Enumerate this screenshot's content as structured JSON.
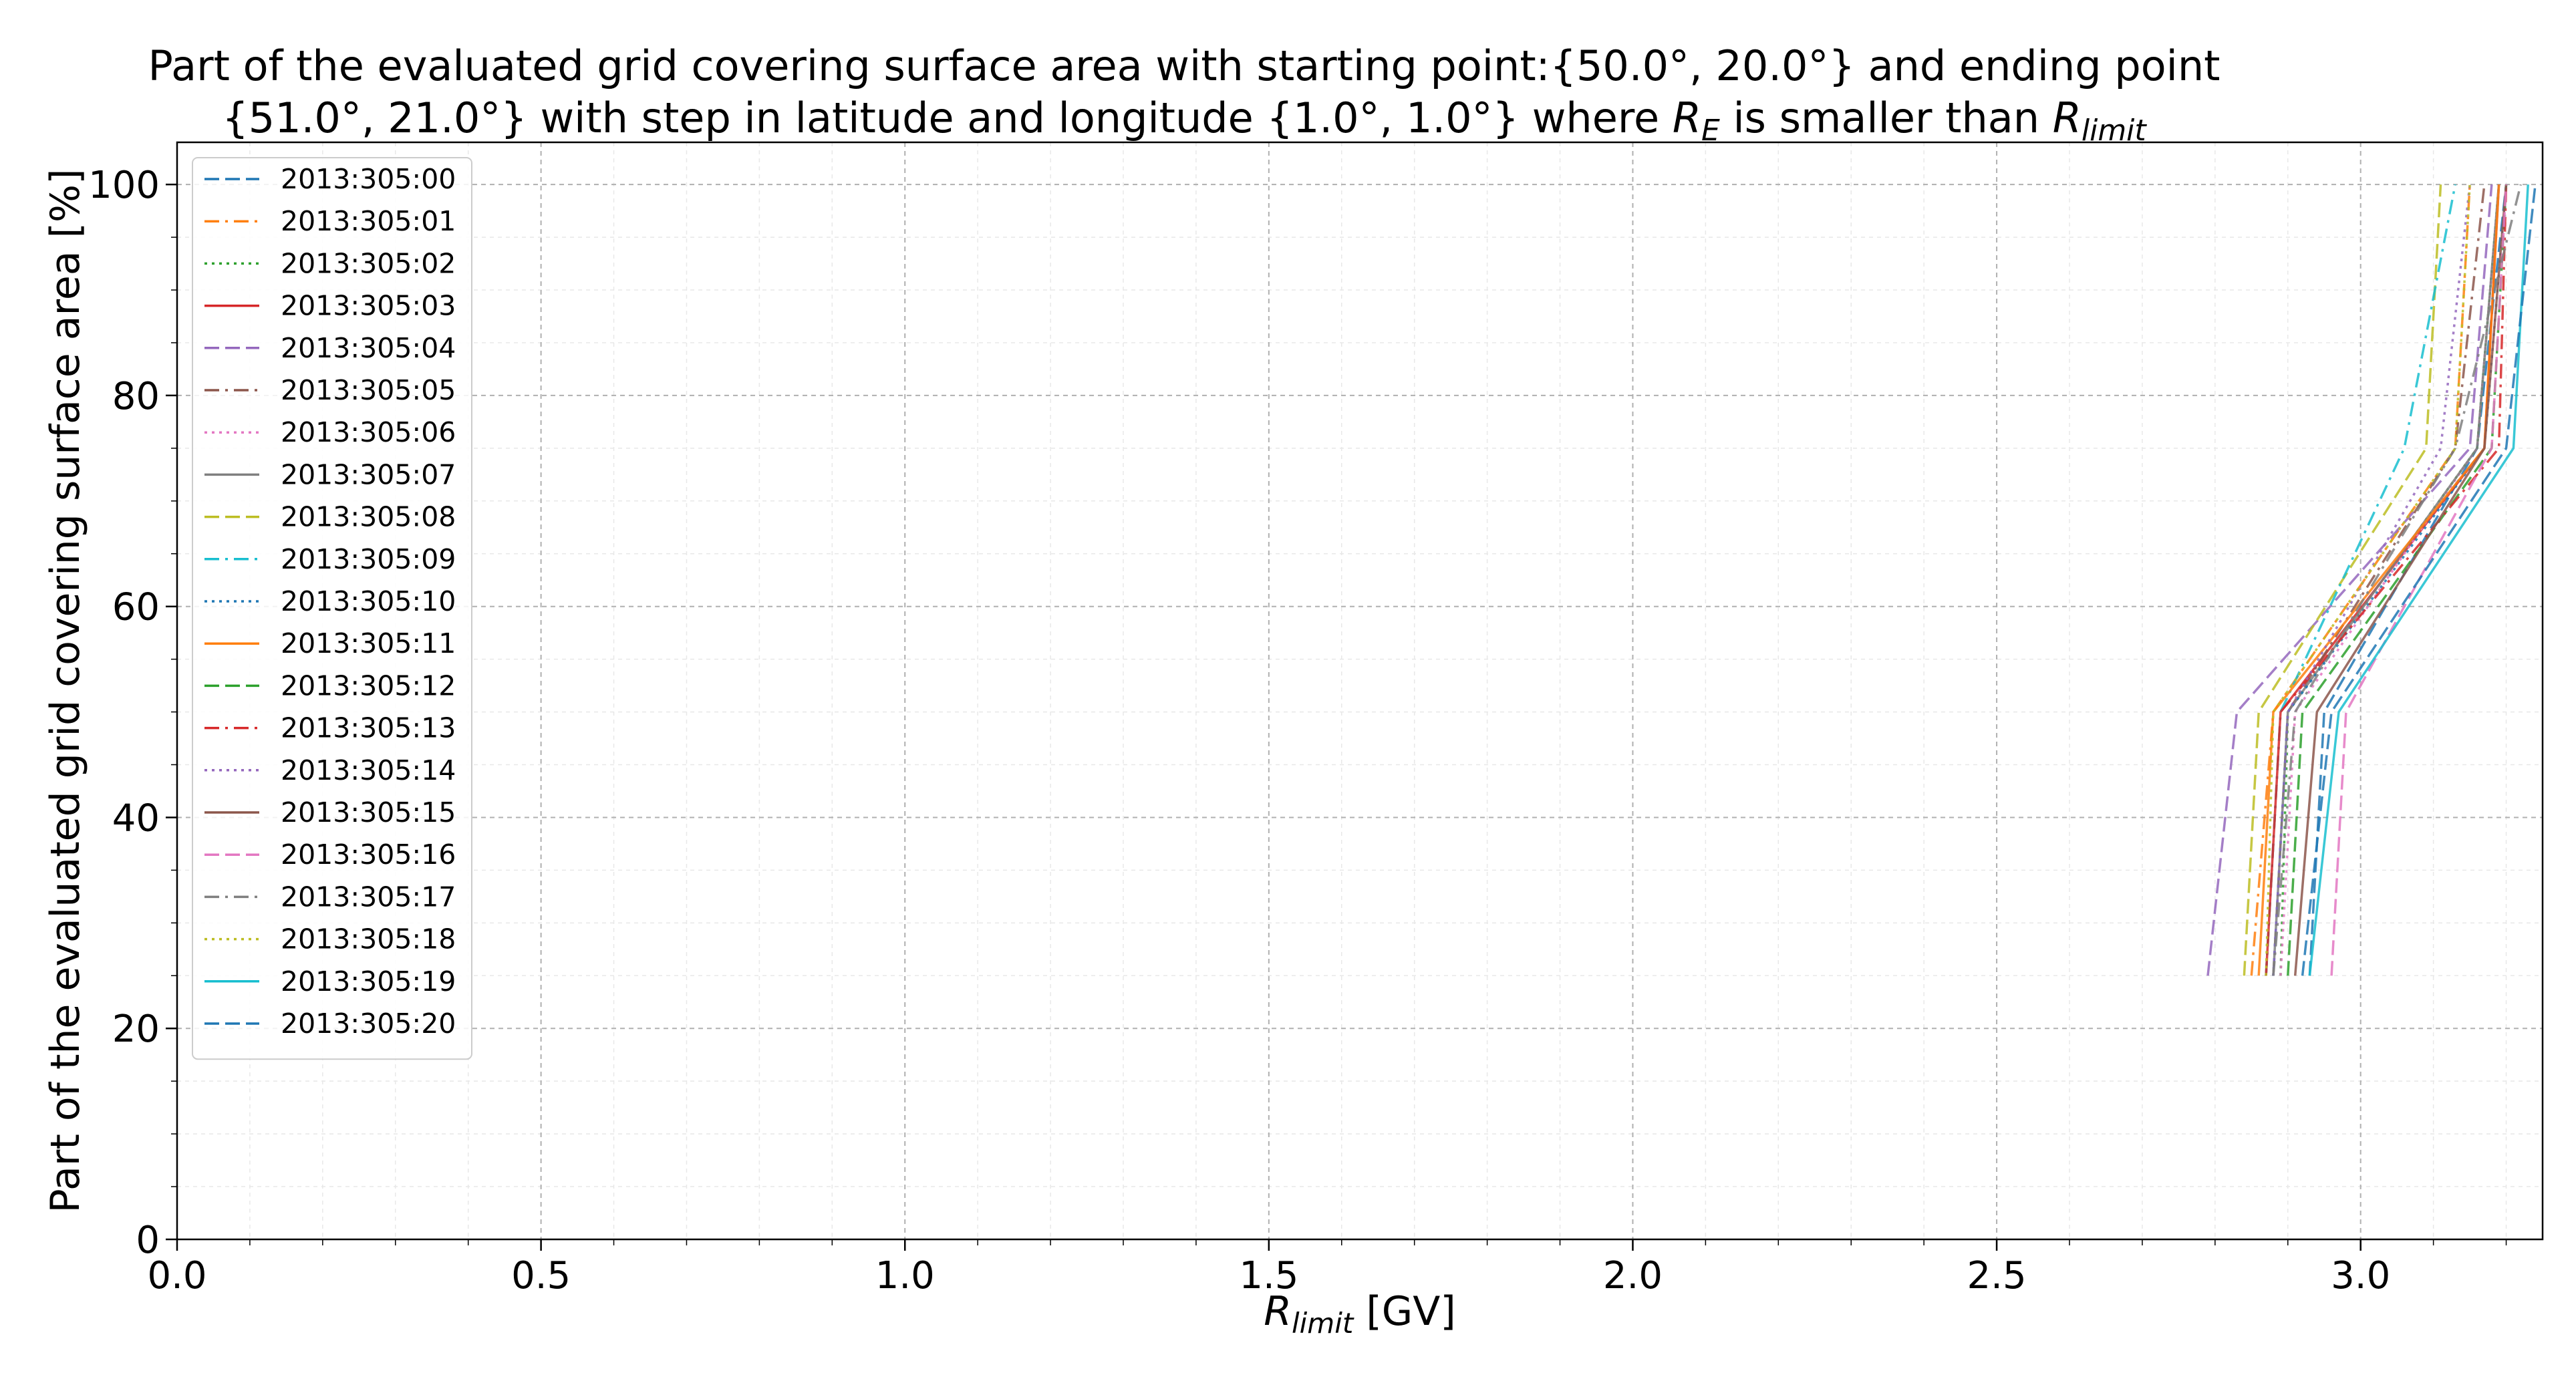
{
  "chart_data": {
    "type": "line",
    "title": {
      "line1": "Part of the evaluated grid covering surface area with starting point:{50.0°, 20.0°} and ending point",
      "line2_prefix": "{51.0°, 21.0°} with step in latitude and longitude {1.0°, 1.0°} where ",
      "line2_sym1": "R",
      "line2_sub1": "E",
      "line2_mid": " is smaller than ",
      "line2_sym2": "R",
      "line2_sub2": "limit"
    },
    "xlabel": {
      "sym": "R",
      "sub": "limit",
      "unit": " [GV]"
    },
    "ylabel": "Part of the evaluated grid covering surface area  [%]",
    "xlim": [
      0,
      3.25
    ],
    "ylim": [
      0,
      104
    ],
    "xticks": [
      "0.0",
      "0.5",
      "1.0",
      "1.5",
      "2.0",
      "2.5",
      "3.0"
    ],
    "yticks": [
      "0",
      "20",
      "40",
      "60",
      "80",
      "100"
    ],
    "grid": true,
    "legend_position": "top-left",
    "y_levels": [
      25,
      50,
      75,
      100
    ],
    "series": [
      {
        "name": "2013:305:00",
        "color": "#1f77b4",
        "dash": "dashed",
        "x": [
          2.93,
          2.95,
          3.16,
          3.2
        ]
      },
      {
        "name": "2013:305:01",
        "color": "#ff7f0e",
        "dash": "dashdot",
        "x": [
          2.85,
          2.88,
          3.13,
          3.15
        ]
      },
      {
        "name": "2013:305:02",
        "color": "#2ca02c",
        "dash": "dotted",
        "x": [
          2.89,
          2.9,
          3.16,
          3.19
        ]
      },
      {
        "name": "2013:305:03",
        "color": "#d62728",
        "dash": "solid",
        "x": [
          2.87,
          2.89,
          3.17,
          3.19
        ]
      },
      {
        "name": "2013:305:04",
        "color": "#9467bd",
        "dash": "dashed",
        "x": [
          2.79,
          2.83,
          3.15,
          3.18
        ]
      },
      {
        "name": "2013:305:05",
        "color": "#8c564b",
        "dash": "dashdot",
        "x": [
          2.88,
          2.9,
          3.13,
          3.17
        ]
      },
      {
        "name": "2013:305:06",
        "color": "#e377c2",
        "dash": "dotted",
        "x": [
          2.89,
          2.91,
          3.16,
          3.19
        ]
      },
      {
        "name": "2013:305:07",
        "color": "#7f7f7f",
        "dash": "solid",
        "x": [
          2.88,
          2.9,
          3.16,
          3.19
        ]
      },
      {
        "name": "2013:305:08",
        "color": "#bcbd22",
        "dash": "dashed",
        "x": [
          2.84,
          2.86,
          3.09,
          3.11
        ]
      },
      {
        "name": "2013:305:09",
        "color": "#17becf",
        "dash": "dashdot",
        "x": [
          2.87,
          2.89,
          3.06,
          3.13
        ]
      },
      {
        "name": "2013:305:10",
        "color": "#1f77b4",
        "dash": "dotted",
        "x": [
          2.88,
          2.9,
          3.17,
          3.2
        ]
      },
      {
        "name": "2013:305:11",
        "color": "#ff7f0e",
        "dash": "solid",
        "x": [
          2.86,
          2.88,
          3.17,
          3.19
        ]
      },
      {
        "name": "2013:305:12",
        "color": "#2ca02c",
        "dash": "dashed",
        "x": [
          2.9,
          2.92,
          3.18,
          3.2
        ]
      },
      {
        "name": "2013:305:13",
        "color": "#d62728",
        "dash": "dashdot",
        "x": [
          2.87,
          2.89,
          3.19,
          3.2
        ]
      },
      {
        "name": "2013:305:14",
        "color": "#9467bd",
        "dash": "dotted",
        "x": [
          2.88,
          2.9,
          3.11,
          3.15
        ]
      },
      {
        "name": "2013:305:15",
        "color": "#8c564b",
        "dash": "solid",
        "x": [
          2.91,
          2.94,
          3.17,
          3.2
        ]
      },
      {
        "name": "2013:305:16",
        "color": "#e377c2",
        "dash": "dashed",
        "x": [
          2.96,
          2.98,
          3.18,
          3.2
        ]
      },
      {
        "name": "2013:305:17",
        "color": "#7f7f7f",
        "dash": "dashdot",
        "x": [
          2.88,
          2.91,
          3.13,
          3.22
        ]
      },
      {
        "name": "2013:305:18",
        "color": "#bcbd22",
        "dash": "dotted",
        "x": [
          2.87,
          2.88,
          3.13,
          3.15
        ]
      },
      {
        "name": "2013:305:19",
        "color": "#17becf",
        "dash": "solid",
        "x": [
          2.93,
          2.97,
          3.21,
          3.23
        ]
      },
      {
        "name": "2013:305:20",
        "color": "#1f77b4",
        "dash": "dashed",
        "x": [
          2.92,
          2.96,
          3.2,
          3.24
        ]
      }
    ]
  }
}
